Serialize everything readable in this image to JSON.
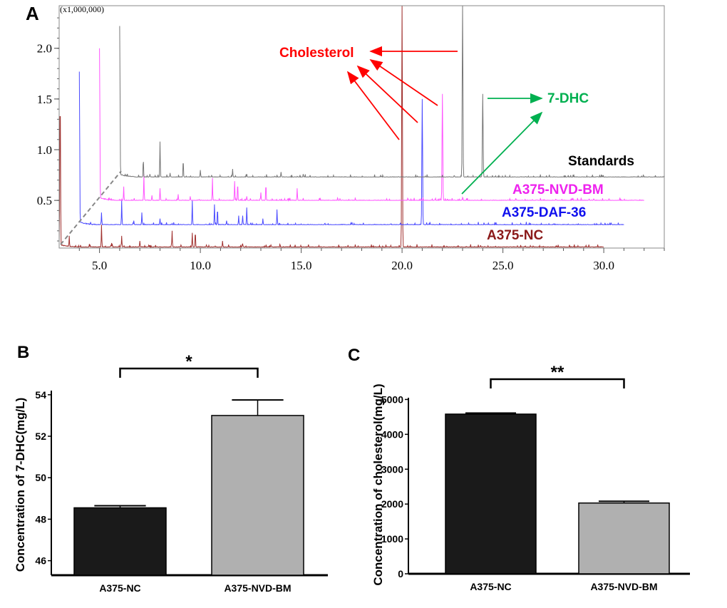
{
  "chart_data": [
    {
      "panel": "A",
      "type": "line",
      "y_multiplier_label": "(x1,000,000)",
      "xlim": [
        3,
        33
      ],
      "ylim": [
        0.03,
        2.42
      ],
      "x_ticks": [
        "5.0",
        "10.0",
        "15.0",
        "20.0",
        "25.0",
        "30.0"
      ],
      "x_tick_values": [
        5,
        10,
        15,
        20,
        25,
        30
      ],
      "y_ticks": [
        "0.5",
        "1.0",
        "1.5",
        "2.0"
      ],
      "y_tick_values": [
        0.5,
        1.0,
        1.5,
        2.0
      ],
      "grid": false,
      "series": [
        {
          "name": "A375-NC",
          "color": "#a0302e",
          "label_color": "#8b1a1a",
          "x_range": [
            3,
            30
          ],
          "baseline": 0.04,
          "peaks": [
            [
              3.05,
              1.55
            ],
            [
              3.5,
              0.15
            ],
            [
              4.5,
              0.07
            ],
            [
              5.1,
              0.26
            ],
            [
              5.6,
              0.08
            ],
            [
              6.1,
              0.15
            ],
            [
              7.0,
              0.1
            ],
            [
              8.6,
              0.2
            ],
            [
              9.6,
              0.18
            ],
            [
              9.75,
              0.2
            ],
            [
              10.3,
              0.06
            ],
            [
              11.1,
              0.1
            ],
            [
              12.1,
              0.07
            ],
            [
              13.5,
              0.06
            ],
            [
              20.0,
              2.45
            ]
          ]
        },
        {
          "name": "A375-DAF-36",
          "color": "#4a4aff",
          "label_color": "#1010ee",
          "x_range": [
            4,
            31
          ],
          "baseline": 0.26,
          "peaks": [
            [
              4.0,
              1.77
            ],
            [
              5.1,
              0.38
            ],
            [
              6.1,
              0.5
            ],
            [
              6.7,
              0.3
            ],
            [
              7.1,
              0.38
            ],
            [
              8.0,
              0.32
            ],
            [
              9.6,
              0.5
            ],
            [
              10.7,
              0.46
            ],
            [
              10.85,
              0.43
            ],
            [
              11.3,
              0.3
            ],
            [
              11.9,
              0.35
            ],
            [
              12.1,
              0.35
            ],
            [
              12.3,
              0.43
            ],
            [
              13.1,
              0.32
            ],
            [
              13.8,
              0.41
            ],
            [
              21.0,
              1.5
            ]
          ]
        },
        {
          "name": "A375-NVD-BM",
          "color": "#ff55ff",
          "label_color": "#ee22ee",
          "x_range": [
            5,
            32
          ],
          "baseline": 0.5,
          "peaks": [
            [
              5.0,
              2.0
            ],
            [
              6.2,
              0.62
            ],
            [
              7.2,
              0.75
            ],
            [
              7.6,
              0.55
            ],
            [
              8.0,
              0.62
            ],
            [
              8.9,
              0.56
            ],
            [
              9.5,
              0.54
            ],
            [
              10.6,
              0.7
            ],
            [
              11.7,
              0.69
            ],
            [
              11.85,
              0.68
            ],
            [
              12.3,
              0.54
            ],
            [
              13.0,
              0.57
            ],
            [
              13.25,
              0.67
            ],
            [
              14.8,
              0.62
            ],
            [
              22.0,
              1.55
            ],
            [
              23.0,
              0.53
            ]
          ]
        },
        {
          "name": "Standards",
          "color": "#777777",
          "label_color": "#000000",
          "x_range": [
            6,
            33
          ],
          "baseline": 0.73,
          "peaks": [
            [
              6.0,
              2.22
            ],
            [
              7.17,
              0.9
            ],
            [
              7.5,
              0.76
            ],
            [
              8.0,
              1.08
            ],
            [
              8.5,
              0.77
            ],
            [
              9.15,
              0.91
            ],
            [
              10.0,
              0.8
            ],
            [
              11.6,
              0.81
            ],
            [
              12.3,
              0.76
            ],
            [
              14.0,
              0.78
            ],
            [
              15.1,
              0.76
            ],
            [
              23.0,
              2.45
            ],
            [
              24.0,
              1.55
            ]
          ]
        }
      ],
      "annotations": {
        "cholesterol": "Cholesterol",
        "dhc": "7-DHC",
        "cholesterol_color": "#ff0000",
        "dhc_color": "#00b050"
      }
    },
    {
      "panel": "B",
      "type": "bar",
      "categories": [
        "A375-NC",
        "A375-NVD-BM"
      ],
      "values": [
        48.55,
        53.0
      ],
      "errors": [
        0.1,
        0.75
      ],
      "colors": [
        "#1a1a1a",
        "#b0b0b0"
      ],
      "ylabel": "Concentration of 7-DHC(mg/L)",
      "ylim": [
        45.3,
        54.2
      ],
      "y_ticks": [
        "46",
        "48",
        "50",
        "52",
        "54"
      ],
      "y_tick_values": [
        46,
        48,
        50,
        52,
        54
      ],
      "significance": "*"
    },
    {
      "panel": "C",
      "type": "bar",
      "categories": [
        "A375-NC",
        "A375-NVD-BM"
      ],
      "values": [
        4580,
        2030
      ],
      "errors": [
        30,
        50
      ],
      "colors": [
        "#1a1a1a",
        "#b0b0b0"
      ],
      "ylabel": "Concentration of cholesterol(mg/L)",
      "ylim": [
        0,
        5050
      ],
      "y_ticks": [
        "0",
        "1000",
        "2000",
        "3000",
        "4000",
        "5000"
      ],
      "y_tick_values": [
        0,
        1000,
        2000,
        3000,
        4000,
        5000
      ],
      "significance": "**"
    }
  ],
  "panel_labels": [
    "A",
    "B",
    "C"
  ]
}
